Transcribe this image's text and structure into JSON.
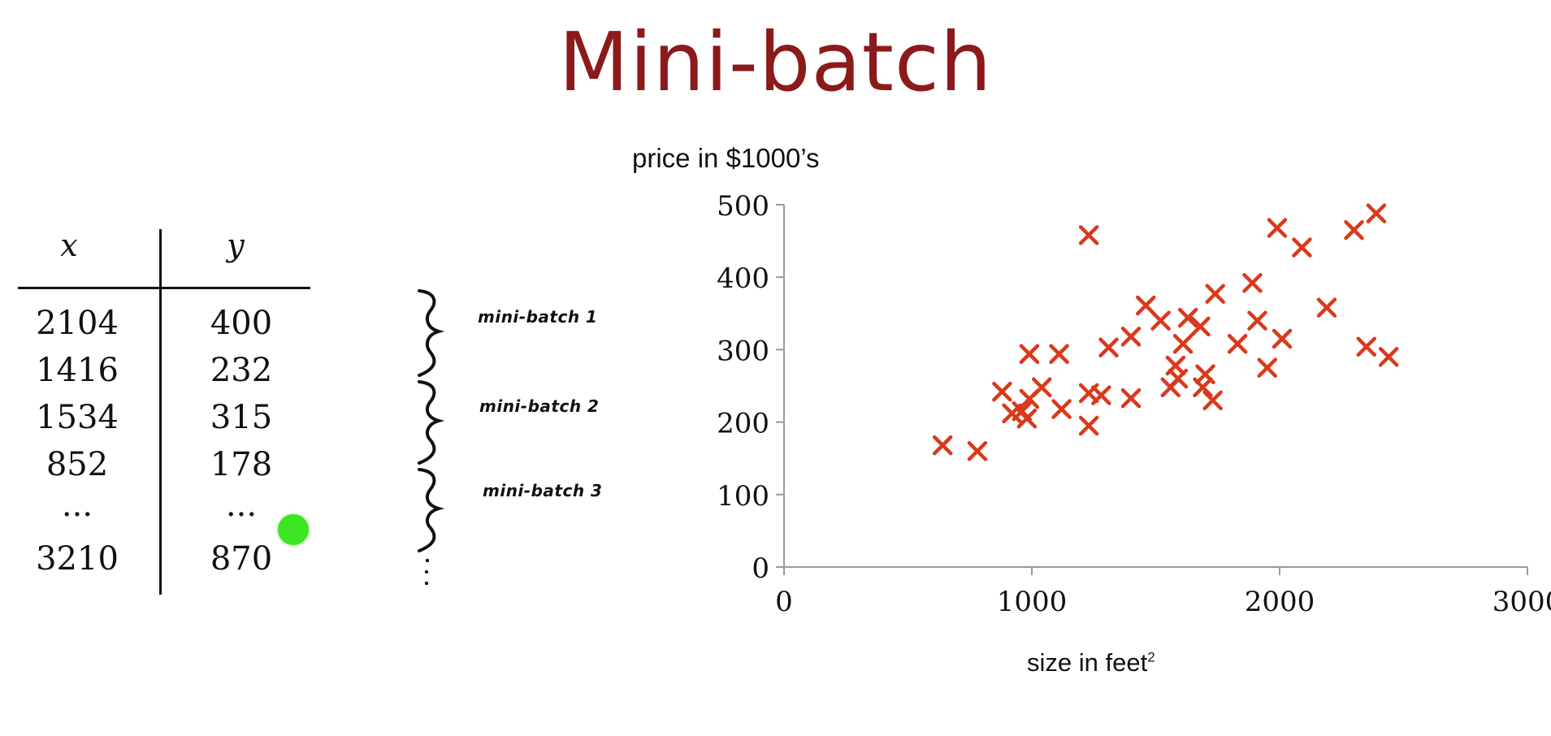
{
  "slide": {
    "title": "Mini-batch"
  },
  "table": {
    "headers": {
      "x": "x",
      "y": "y"
    },
    "rows": [
      {
        "x": "2104",
        "y": "400"
      },
      {
        "x": "1416",
        "y": "232"
      },
      {
        "x": "1534",
        "y": "315"
      },
      {
        "x": "852",
        "y": "178"
      },
      {
        "x": "...",
        "y": "..."
      },
      {
        "x": "3210",
        "y": "870"
      }
    ]
  },
  "minibatches": [
    {
      "label": "mini-batch 1"
    },
    {
      "label": "mini-batch 2"
    },
    {
      "label": "mini-batch 3"
    }
  ],
  "chart_data": {
    "type": "scatter",
    "title": "",
    "ylabel": "price in $1000’s",
    "xlabel_text": "size in feet",
    "xlabel_sup": "2",
    "xlim": [
      0,
      3000
    ],
    "ylim": [
      0,
      500
    ],
    "xticks": [
      0,
      1000,
      2000,
      3000
    ],
    "yticks": [
      0,
      100,
      200,
      300,
      400,
      500
    ],
    "tick_labels_x": [
      "0",
      "1000",
      "2000",
      "3000"
    ],
    "tick_labels_y": [
      "0",
      "100",
      "200",
      "300",
      "400",
      "500"
    ],
    "marker": "x",
    "marker_color": "#d9391c",
    "points": [
      [
        640,
        168
      ],
      [
        780,
        160
      ],
      [
        880,
        242
      ],
      [
        920,
        212
      ],
      [
        960,
        215
      ],
      [
        980,
        205
      ],
      [
        990,
        232
      ],
      [
        990,
        294
      ],
      [
        1040,
        248
      ],
      [
        1110,
        294
      ],
      [
        1120,
        218
      ],
      [
        1230,
        458
      ],
      [
        1230,
        240
      ],
      [
        1230,
        195
      ],
      [
        1280,
        237
      ],
      [
        1310,
        303
      ],
      [
        1400,
        318
      ],
      [
        1400,
        233
      ],
      [
        1460,
        361
      ],
      [
        1520,
        340
      ],
      [
        1560,
        248
      ],
      [
        1580,
        278
      ],
      [
        1590,
        260
      ],
      [
        1610,
        308
      ],
      [
        1630,
        344
      ],
      [
        1680,
        332
      ],
      [
        1690,
        248
      ],
      [
        1700,
        266
      ],
      [
        1730,
        230
      ],
      [
        1740,
        377
      ],
      [
        1830,
        308
      ],
      [
        1890,
        392
      ],
      [
        1910,
        340
      ],
      [
        1950,
        275
      ],
      [
        1990,
        468
      ],
      [
        2010,
        315
      ],
      [
        2090,
        441
      ],
      [
        2190,
        358
      ],
      [
        2300,
        465
      ],
      [
        2350,
        304
      ],
      [
        2390,
        488
      ],
      [
        2440,
        290
      ]
    ],
    "grid": false,
    "legend": "none"
  }
}
